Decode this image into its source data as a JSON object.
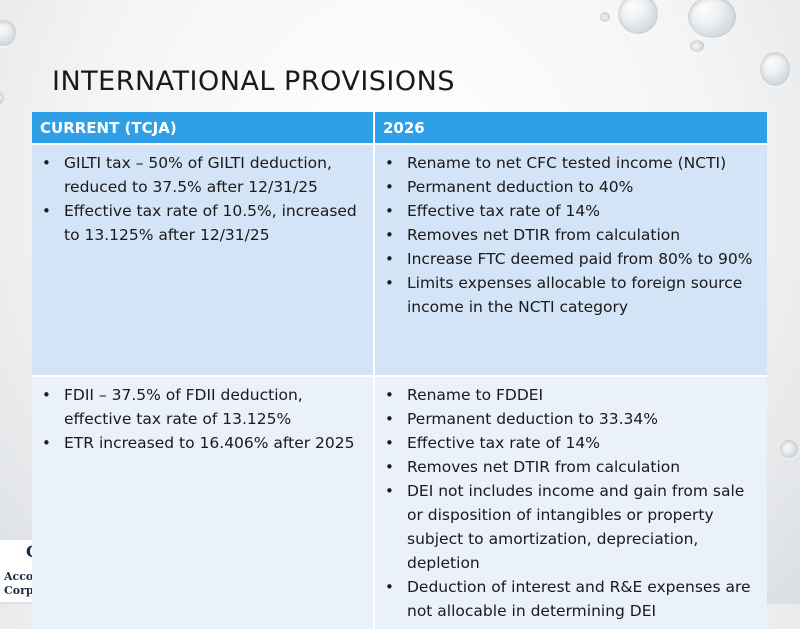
{
  "title": "INTERNATIONAL PROVISIONS",
  "logo": {
    "line1": "C",
    "line2": "Acco",
    "line3": "Corporation"
  },
  "table": {
    "headers": [
      "CURRENT (TCJA)",
      "2026"
    ],
    "rows": [
      {
        "current": [
          "GILTI tax – 50% of GILTI deduction, reduced to 37.5% after 12/31/25",
          "Effective tax rate of 10.5%, increased to 13.125% after 12/31/25"
        ],
        "future": [
          "Rename to net CFC tested income (NCTI)",
          "Permanent deduction to 40%",
          "Effective tax rate of 14%",
          "Removes net DTIR from calculation",
          "Increase FTC deemed paid from 80% to 90%",
          "Limits expenses allocable to foreign source income in the NCTI category"
        ]
      },
      {
        "current": [
          "FDII – 37.5% of FDII deduction, effective tax rate of 13.125%",
          "ETR increased to 16.406% after 2025"
        ],
        "future": [
          "Rename to FDDEI",
          "Permanent deduction to 33.34%",
          "Effective tax rate of 14%",
          "Removes net DTIR from calculation",
          "DEI not includes income and gain from sale or disposition of intangibles or property subject to amortization, depreciation, depletion",
          "Deduction of interest and R&E expenses are not allocable in determining DEI"
        ]
      }
    ]
  }
}
